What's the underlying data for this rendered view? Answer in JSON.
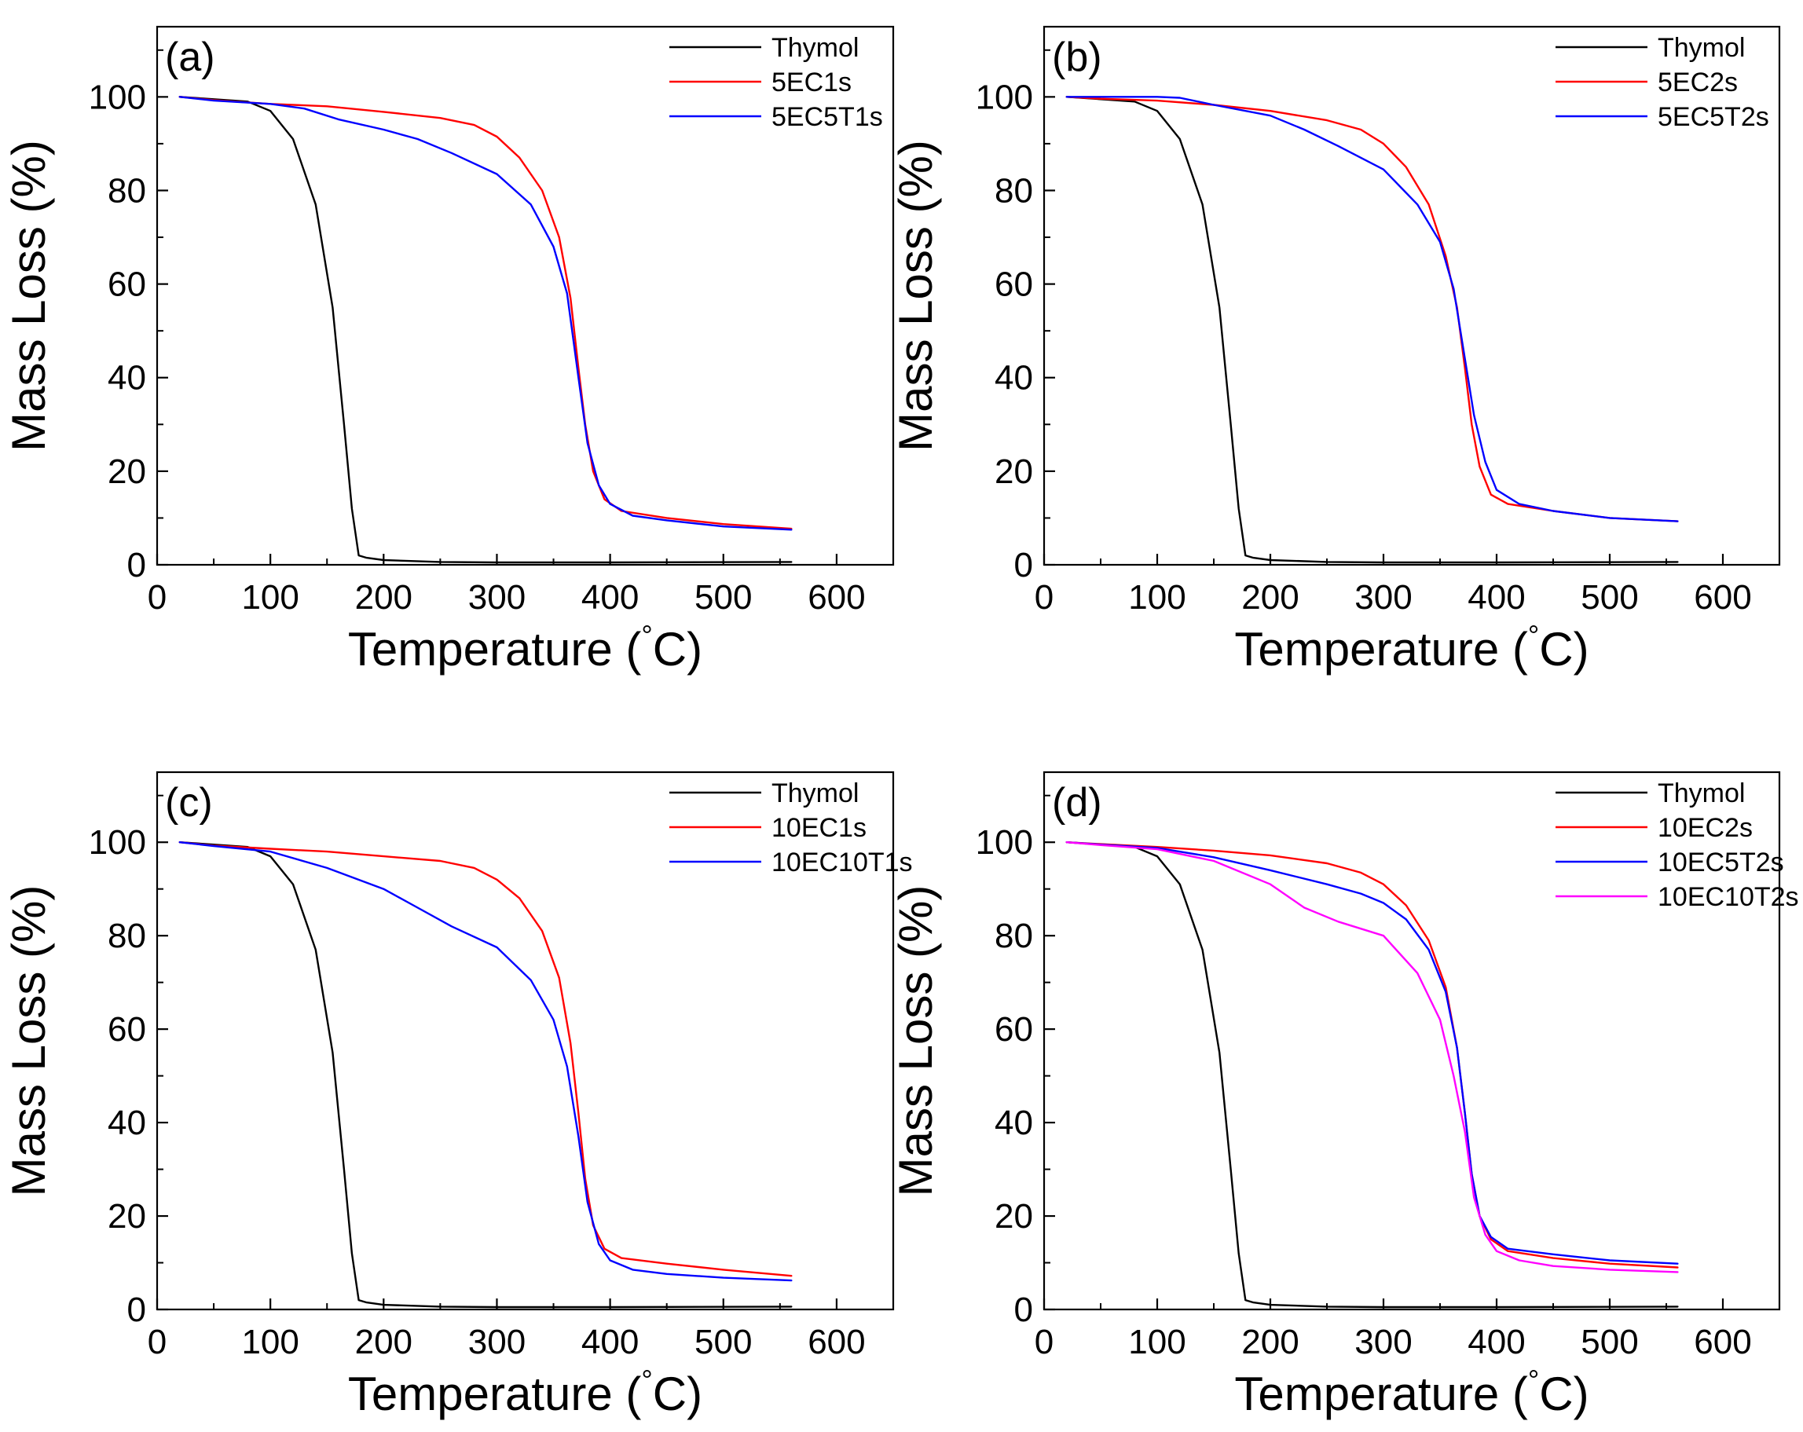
{
  "figure": {
    "background": "#ffffff"
  },
  "colors": {
    "Thymol": "#000000",
    "red": "#ff0000",
    "blue": "#0000ff",
    "magenta": "#ff00ff"
  },
  "chart_data": [
    {
      "type": "line",
      "panel_label": "(a)",
      "xlabel": "Temperature (°C)",
      "ylabel": "Mass Loss (%)",
      "xlim": [
        0,
        650
      ],
      "ylim": [
        0,
        115
      ],
      "xticks": [
        0,
        100,
        200,
        300,
        400,
        500,
        600
      ],
      "yticks": [
        0,
        20,
        40,
        60,
        80,
        100
      ],
      "legend_position": "top-right",
      "series": [
        {
          "name": "Thymol",
          "color": "#000000",
          "x": [
            20,
            50,
            80,
            100,
            120,
            140,
            155,
            165,
            172,
            178,
            185,
            200,
            250,
            300,
            400,
            560
          ],
          "y": [
            100,
            99.5,
            99,
            97,
            91,
            77,
            55,
            30,
            12,
            2,
            1.5,
            1,
            0.6,
            0.5,
            0.5,
            0.6
          ]
        },
        {
          "name": "5EC1s",
          "color": "#ff0000",
          "x": [
            20,
            50,
            100,
            150,
            200,
            250,
            280,
            300,
            320,
            340,
            355,
            365,
            372,
            378,
            385,
            395,
            410,
            450,
            500,
            560
          ],
          "y": [
            100,
            99.3,
            98.5,
            98,
            96.8,
            95.5,
            94,
            91.5,
            87,
            80,
            70,
            57,
            42,
            30,
            20,
            14,
            11.5,
            10,
            8.7,
            7.7
          ]
        },
        {
          "name": "5EC5T1s",
          "color": "#0000ff",
          "x": [
            20,
            50,
            100,
            130,
            160,
            200,
            230,
            260,
            300,
            330,
            350,
            362,
            372,
            380,
            390,
            400,
            420,
            450,
            500,
            560
          ],
          "y": [
            100,
            99.2,
            98.5,
            97.5,
            95.2,
            93,
            91,
            88,
            83.5,
            77,
            68,
            58,
            40,
            26,
            17,
            13,
            10.5,
            9.5,
            8.2,
            7.5
          ]
        }
      ]
    },
    {
      "type": "line",
      "panel_label": "(b)",
      "xlabel": "Temperature (°C)",
      "ylabel": "Mass Loss (%)",
      "xlim": [
        0,
        650
      ],
      "ylim": [
        0,
        115
      ],
      "xticks": [
        0,
        100,
        200,
        300,
        400,
        500,
        600
      ],
      "yticks": [
        0,
        20,
        40,
        60,
        80,
        100
      ],
      "legend_position": "top-right",
      "series": [
        {
          "name": "Thymol",
          "color": "#000000",
          "x": [
            20,
            50,
            80,
            100,
            120,
            140,
            155,
            165,
            172,
            178,
            185,
            200,
            250,
            300,
            400,
            560
          ],
          "y": [
            100,
            99.5,
            99,
            97,
            91,
            77,
            55,
            30,
            12,
            2,
            1.5,
            1,
            0.6,
            0.5,
            0.5,
            0.6
          ]
        },
        {
          "name": "5EC2s",
          "color": "#ff0000",
          "x": [
            20,
            50,
            100,
            150,
            200,
            250,
            280,
            300,
            320,
            340,
            355,
            365,
            372,
            378,
            385,
            395,
            410,
            450,
            500,
            560
          ],
          "y": [
            100,
            99.6,
            99.2,
            98.3,
            97,
            95,
            93,
            90,
            85,
            77,
            66,
            55,
            42,
            30,
            21,
            15,
            13,
            11.5,
            10,
            9.3
          ]
        },
        {
          "name": "5EC5T2s",
          "color": "#0000ff",
          "x": [
            20,
            50,
            100,
            120,
            150,
            200,
            230,
            260,
            300,
            330,
            350,
            362,
            372,
            380,
            390,
            400,
            420,
            450,
            500,
            560
          ],
          "y": [
            100,
            100,
            100,
            99.8,
            98.3,
            96,
            93,
            89.5,
            84.5,
            77,
            69,
            59,
            44,
            32,
            22,
            16,
            13,
            11.5,
            10,
            9.3
          ]
        }
      ]
    },
    {
      "type": "line",
      "panel_label": "(c)",
      "xlabel": "Temperature (°C)",
      "ylabel": "Mass Loss (%)",
      "xlim": [
        0,
        650
      ],
      "ylim": [
        0,
        115
      ],
      "xticks": [
        0,
        100,
        200,
        300,
        400,
        500,
        600
      ],
      "yticks": [
        0,
        20,
        40,
        60,
        80,
        100
      ],
      "legend_position": "top-right",
      "series": [
        {
          "name": "Thymol",
          "color": "#000000",
          "x": [
            20,
            50,
            80,
            100,
            120,
            140,
            155,
            165,
            172,
            178,
            185,
            200,
            250,
            300,
            400,
            560
          ],
          "y": [
            100,
            99.5,
            99,
            97,
            91,
            77,
            55,
            30,
            12,
            2,
            1.5,
            1,
            0.6,
            0.5,
            0.5,
            0.6
          ]
        },
        {
          "name": "10EC1s",
          "color": "#ff0000",
          "x": [
            20,
            50,
            100,
            150,
            200,
            250,
            280,
            300,
            320,
            340,
            355,
            365,
            372,
            378,
            385,
            395,
            410,
            450,
            500,
            560
          ],
          "y": [
            100,
            99.3,
            98.6,
            98,
            97,
            96,
            94.5,
            92,
            88,
            81,
            71,
            57,
            42,
            28,
            18,
            13,
            11,
            9.8,
            8.5,
            7.2
          ]
        },
        {
          "name": "10EC10T1s",
          "color": "#0000ff",
          "x": [
            20,
            50,
            100,
            150,
            200,
            230,
            260,
            300,
            330,
            350,
            362,
            372,
            380,
            390,
            400,
            420,
            450,
            500,
            560
          ],
          "y": [
            100,
            99.2,
            98,
            94.5,
            90,
            86,
            82,
            77.5,
            70.5,
            62,
            52,
            37,
            23,
            14,
            10.5,
            8.5,
            7.6,
            6.8,
            6.2
          ]
        }
      ]
    },
    {
      "type": "line",
      "panel_label": "(d)",
      "xlabel": "Temperature (°C)",
      "ylabel": "Mass Loss (%)",
      "xlim": [
        0,
        650
      ],
      "ylim": [
        0,
        115
      ],
      "xticks": [
        0,
        100,
        200,
        300,
        400,
        500,
        600
      ],
      "yticks": [
        0,
        20,
        40,
        60,
        80,
        100
      ],
      "legend_position": "top-right",
      "series": [
        {
          "name": "Thymol",
          "color": "#000000",
          "x": [
            20,
            50,
            80,
            100,
            120,
            140,
            155,
            165,
            172,
            178,
            185,
            200,
            250,
            300,
            400,
            560
          ],
          "y": [
            100,
            99.5,
            99,
            97,
            91,
            77,
            55,
            30,
            12,
            2,
            1.5,
            1,
            0.6,
            0.5,
            0.5,
            0.6
          ]
        },
        {
          "name": "10EC2s",
          "color": "#ff0000",
          "x": [
            20,
            50,
            100,
            150,
            200,
            250,
            280,
            300,
            320,
            340,
            355,
            365,
            372,
            378,
            385,
            395,
            410,
            450,
            500,
            560
          ],
          "y": [
            100,
            99.6,
            99,
            98.2,
            97.2,
            95.5,
            93.5,
            91,
            86.5,
            79,
            69,
            56,
            42,
            29,
            20,
            15,
            12.5,
            11,
            9.8,
            9
          ]
        },
        {
          "name": "10EC5T2s",
          "color": "#0000ff",
          "x": [
            20,
            50,
            100,
            150,
            200,
            250,
            280,
            300,
            320,
            340,
            355,
            365,
            372,
            378,
            385,
            395,
            410,
            450,
            500,
            560
          ],
          "y": [
            100,
            99.5,
            98.8,
            96.8,
            94,
            91,
            89,
            87,
            83.5,
            77,
            68,
            56,
            42,
            29,
            20,
            15.5,
            13,
            11.8,
            10.5,
            9.8
          ]
        },
        {
          "name": "10EC10T2s",
          "color": "#ff00ff",
          "x": [
            20,
            50,
            100,
            150,
            200,
            230,
            260,
            300,
            330,
            350,
            362,
            372,
            380,
            390,
            400,
            420,
            450,
            500,
            560
          ],
          "y": [
            100,
            99.4,
            98.5,
            96,
            91,
            86,
            83,
            80,
            72,
            62,
            50,
            38,
            24,
            16,
            12.5,
            10.5,
            9.3,
            8.5,
            8
          ]
        }
      ]
    }
  ]
}
